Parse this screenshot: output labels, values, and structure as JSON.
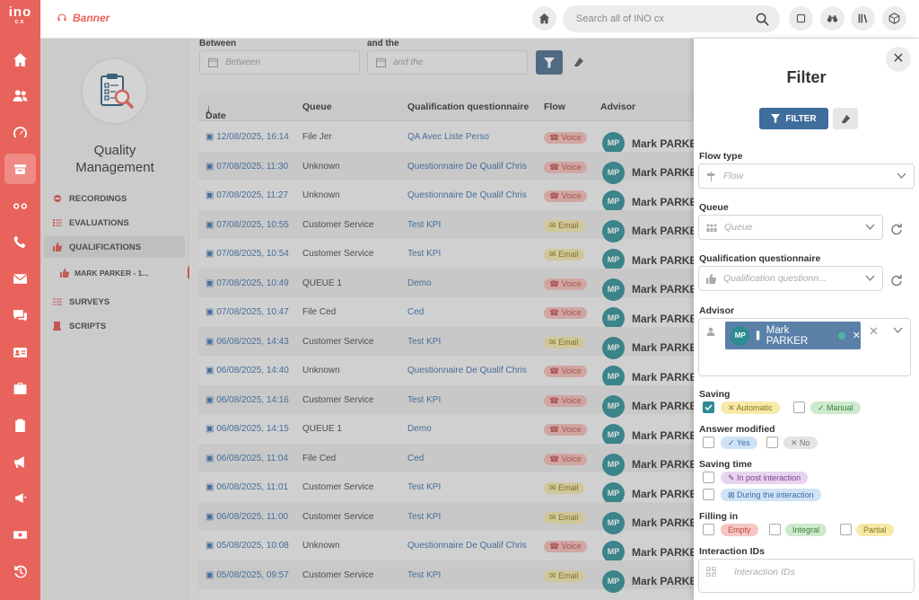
{
  "app": {
    "logo_line1": "ino",
    "logo_line2": "cx",
    "brand": "Banner",
    "search_placeholder": "Search all of INO cx"
  },
  "rail": {
    "items": [
      "home-icon",
      "users-icon",
      "dashboard-icon",
      "inbox-icon",
      "voicemail-icon",
      "phone-icon",
      "mail-icon",
      "chat-icon",
      "contact-card-icon",
      "briefcase-icon",
      "clipboard-icon",
      "megaphone-icon",
      "campaign-icon",
      "ticket-icon",
      "history-icon"
    ],
    "active_index": 3
  },
  "sidenav": {
    "title_line1": "Quality",
    "title_line2": "Management",
    "items": [
      {
        "label": "RECORDINGS"
      },
      {
        "label": "EVALUATIONS"
      },
      {
        "label": "QUALIFICATIONS"
      },
      {
        "label": "SURVEYS"
      },
      {
        "label": "SCRIPTS"
      }
    ],
    "sub_item": "MARK PARKER - 1...",
    "sub_close": "✕"
  },
  "filters_bar": {
    "between_label": "Between",
    "between_placeholder": "Between",
    "and_label": "and the",
    "and_placeholder": "and the"
  },
  "table": {
    "columns": [
      "Date",
      "Queue",
      "Qualification questionnaire",
      "Flow",
      "Advisor"
    ],
    "rows": [
      {
        "date": "12/08/2025, 16:14",
        "queue": "File Jer",
        "qq": "QA Avec Liste Perso",
        "flow": "Voice",
        "advisor": "Mark PARKER"
      },
      {
        "date": "07/08/2025, 11:30",
        "queue": "Unknown",
        "qq": "Questionnaire De Qualif Chris",
        "flow": "Voice",
        "advisor": "Mark PARKER"
      },
      {
        "date": "07/08/2025, 11:27",
        "queue": "Unknown",
        "qq": "Questionnaire De Qualif Chris",
        "flow": "Voice",
        "advisor": "Mark PARKER"
      },
      {
        "date": "07/08/2025, 10:55",
        "queue": "Customer Service",
        "qq": "Test KPI",
        "flow": "Email",
        "advisor": "Mark PARKER"
      },
      {
        "date": "07/08/2025, 10:54",
        "queue": "Customer Service",
        "qq": "Test KPI",
        "flow": "Email",
        "advisor": "Mark PARKER"
      },
      {
        "date": "07/08/2025, 10:49",
        "queue": "QUEUE 1",
        "qq": "Demo",
        "flow": "Voice",
        "advisor": "Mark PARKER"
      },
      {
        "date": "07/08/2025, 10:47",
        "queue": "File Ced",
        "qq": "Ced",
        "flow": "Voice",
        "advisor": "Mark PARKER"
      },
      {
        "date": "06/08/2025, 14:43",
        "queue": "Customer Service",
        "qq": "Test KPI",
        "flow": "Email",
        "advisor": "Mark PARKER"
      },
      {
        "date": "06/08/2025, 14:40",
        "queue": "Unknown",
        "qq": "Questionnaire De Qualif Chris",
        "flow": "Voice",
        "advisor": "Mark PARKER"
      },
      {
        "date": "06/08/2025, 14:16",
        "queue": "Customer Service",
        "qq": "Test KPI",
        "flow": "Voice",
        "advisor": "Mark PARKER"
      },
      {
        "date": "06/08/2025, 14:15",
        "queue": "QUEUE 1",
        "qq": "Demo",
        "flow": "Voice",
        "advisor": "Mark PARKER"
      },
      {
        "date": "06/08/2025, 11:04",
        "queue": "File Ced",
        "qq": "Ced",
        "flow": "Voice",
        "advisor": "Mark PARKER"
      },
      {
        "date": "06/08/2025, 11:01",
        "queue": "Customer Service",
        "qq": "Test KPI",
        "flow": "Email",
        "advisor": "Mark PARKER"
      },
      {
        "date": "06/08/2025, 11:00",
        "queue": "Customer Service",
        "qq": "Test KPI",
        "flow": "Email",
        "advisor": "Mark PARKER"
      },
      {
        "date": "05/08/2025, 10:08",
        "queue": "Unknown",
        "qq": "Questionnaire De Qualif Chris",
        "flow": "Voice",
        "advisor": "Mark PARKER"
      },
      {
        "date": "05/08/2025, 09:57",
        "queue": "Customer Service",
        "qq": "Test KPI",
        "flow": "Email",
        "advisor": "Mark PARKER"
      }
    ],
    "avatar_initials": "MP"
  },
  "panel": {
    "title": "Filter",
    "filter_button": "FILTER",
    "flow_type_label": "Flow type",
    "flow_placeholder": "Flow",
    "queue_label": "Queue",
    "queue_placeholder": "Queue",
    "qq_label": "Qualification questionnaire",
    "qq_placeholder": "Qualification questionn...",
    "advisor_label": "Advisor",
    "advisor_chip": "Mark PARKER",
    "advisor_initials": "MP",
    "saving_label": "Saving",
    "saving_automatic": "Automatic",
    "saving_manual": "Manual",
    "answer_label": "Answer modified",
    "answer_yes": "Yes",
    "answer_no": "No",
    "saving_time_label": "Saving time",
    "st_post": "In post interaction",
    "st_during": "During the interaction",
    "filling_label": "Filling in",
    "fill_empty": "Empty",
    "fill_integral": "Integral",
    "fill_partial": "Partial",
    "ids_label": "Interaction IDs",
    "ids_placeholder": "Interaction IDs"
  },
  "colors": {
    "rail": "#e8635b",
    "accent": "#3f6d9c",
    "avatar": "#2e8b92"
  }
}
